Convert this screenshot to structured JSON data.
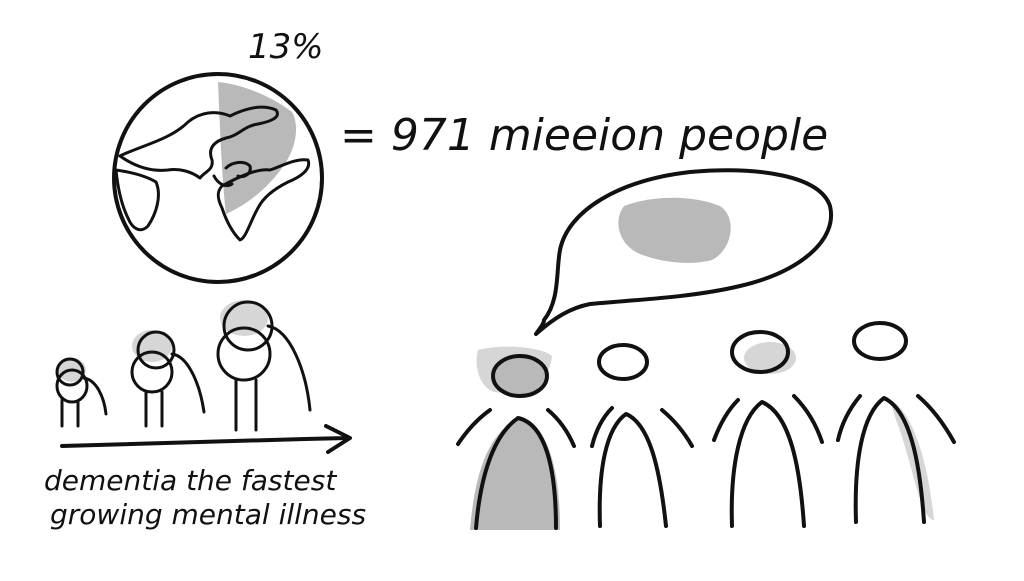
{
  "globe": {
    "percent_label": "13%"
  },
  "equation": {
    "text": "= 971 mieeion people"
  },
  "timeline": {
    "caption_line1": "dementia the fastest",
    "caption_line2": "growing mental illness"
  },
  "people": {
    "total": 4,
    "highlighted": 1
  },
  "colors": {
    "ink": "#111111",
    "shade": "#b9b9b9",
    "paper": "#ffffff"
  }
}
